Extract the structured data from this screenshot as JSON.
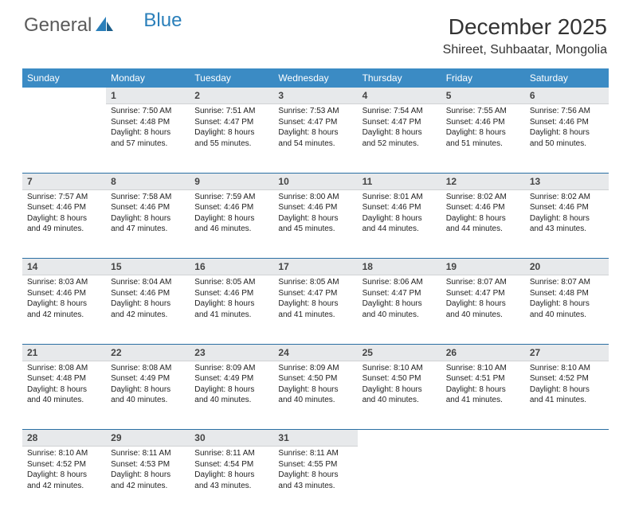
{
  "brand": {
    "part1": "General",
    "part2": "Blue"
  },
  "title": "December 2025",
  "location": "Shireet, Suhbaatar, Mongolia",
  "colors": {
    "header_bg": "#3b8bc4",
    "header_text": "#ffffff",
    "daynum_bg": "#e7e9eb",
    "week_rule": "#2a6fa3",
    "logo_gray": "#5a5a5a",
    "logo_blue": "#2a7fba"
  },
  "fonts": {
    "title_size": 28,
    "location_size": 16,
    "th_size": 12,
    "cell_size": 10
  },
  "weekdays": [
    "Sunday",
    "Monday",
    "Tuesday",
    "Wednesday",
    "Thursday",
    "Friday",
    "Saturday"
  ],
  "weeks": [
    [
      {
        "n": "",
        "sunrise": "",
        "sunset": "",
        "daylight": ""
      },
      {
        "n": "1",
        "sunrise": "Sunrise: 7:50 AM",
        "sunset": "Sunset: 4:48 PM",
        "daylight": "Daylight: 8 hours and 57 minutes."
      },
      {
        "n": "2",
        "sunrise": "Sunrise: 7:51 AM",
        "sunset": "Sunset: 4:47 PM",
        "daylight": "Daylight: 8 hours and 55 minutes."
      },
      {
        "n": "3",
        "sunrise": "Sunrise: 7:53 AM",
        "sunset": "Sunset: 4:47 PM",
        "daylight": "Daylight: 8 hours and 54 minutes."
      },
      {
        "n": "4",
        "sunrise": "Sunrise: 7:54 AM",
        "sunset": "Sunset: 4:47 PM",
        "daylight": "Daylight: 8 hours and 52 minutes."
      },
      {
        "n": "5",
        "sunrise": "Sunrise: 7:55 AM",
        "sunset": "Sunset: 4:46 PM",
        "daylight": "Daylight: 8 hours and 51 minutes."
      },
      {
        "n": "6",
        "sunrise": "Sunrise: 7:56 AM",
        "sunset": "Sunset: 4:46 PM",
        "daylight": "Daylight: 8 hours and 50 minutes."
      }
    ],
    [
      {
        "n": "7",
        "sunrise": "Sunrise: 7:57 AM",
        "sunset": "Sunset: 4:46 PM",
        "daylight": "Daylight: 8 hours and 49 minutes."
      },
      {
        "n": "8",
        "sunrise": "Sunrise: 7:58 AM",
        "sunset": "Sunset: 4:46 PM",
        "daylight": "Daylight: 8 hours and 47 minutes."
      },
      {
        "n": "9",
        "sunrise": "Sunrise: 7:59 AM",
        "sunset": "Sunset: 4:46 PM",
        "daylight": "Daylight: 8 hours and 46 minutes."
      },
      {
        "n": "10",
        "sunrise": "Sunrise: 8:00 AM",
        "sunset": "Sunset: 4:46 PM",
        "daylight": "Daylight: 8 hours and 45 minutes."
      },
      {
        "n": "11",
        "sunrise": "Sunrise: 8:01 AM",
        "sunset": "Sunset: 4:46 PM",
        "daylight": "Daylight: 8 hours and 44 minutes."
      },
      {
        "n": "12",
        "sunrise": "Sunrise: 8:02 AM",
        "sunset": "Sunset: 4:46 PM",
        "daylight": "Daylight: 8 hours and 44 minutes."
      },
      {
        "n": "13",
        "sunrise": "Sunrise: 8:02 AM",
        "sunset": "Sunset: 4:46 PM",
        "daylight": "Daylight: 8 hours and 43 minutes."
      }
    ],
    [
      {
        "n": "14",
        "sunrise": "Sunrise: 8:03 AM",
        "sunset": "Sunset: 4:46 PM",
        "daylight": "Daylight: 8 hours and 42 minutes."
      },
      {
        "n": "15",
        "sunrise": "Sunrise: 8:04 AM",
        "sunset": "Sunset: 4:46 PM",
        "daylight": "Daylight: 8 hours and 42 minutes."
      },
      {
        "n": "16",
        "sunrise": "Sunrise: 8:05 AM",
        "sunset": "Sunset: 4:46 PM",
        "daylight": "Daylight: 8 hours and 41 minutes."
      },
      {
        "n": "17",
        "sunrise": "Sunrise: 8:05 AM",
        "sunset": "Sunset: 4:47 PM",
        "daylight": "Daylight: 8 hours and 41 minutes."
      },
      {
        "n": "18",
        "sunrise": "Sunrise: 8:06 AM",
        "sunset": "Sunset: 4:47 PM",
        "daylight": "Daylight: 8 hours and 40 minutes."
      },
      {
        "n": "19",
        "sunrise": "Sunrise: 8:07 AM",
        "sunset": "Sunset: 4:47 PM",
        "daylight": "Daylight: 8 hours and 40 minutes."
      },
      {
        "n": "20",
        "sunrise": "Sunrise: 8:07 AM",
        "sunset": "Sunset: 4:48 PM",
        "daylight": "Daylight: 8 hours and 40 minutes."
      }
    ],
    [
      {
        "n": "21",
        "sunrise": "Sunrise: 8:08 AM",
        "sunset": "Sunset: 4:48 PM",
        "daylight": "Daylight: 8 hours and 40 minutes."
      },
      {
        "n": "22",
        "sunrise": "Sunrise: 8:08 AM",
        "sunset": "Sunset: 4:49 PM",
        "daylight": "Daylight: 8 hours and 40 minutes."
      },
      {
        "n": "23",
        "sunrise": "Sunrise: 8:09 AM",
        "sunset": "Sunset: 4:49 PM",
        "daylight": "Daylight: 8 hours and 40 minutes."
      },
      {
        "n": "24",
        "sunrise": "Sunrise: 8:09 AM",
        "sunset": "Sunset: 4:50 PM",
        "daylight": "Daylight: 8 hours and 40 minutes."
      },
      {
        "n": "25",
        "sunrise": "Sunrise: 8:10 AM",
        "sunset": "Sunset: 4:50 PM",
        "daylight": "Daylight: 8 hours and 40 minutes."
      },
      {
        "n": "26",
        "sunrise": "Sunrise: 8:10 AM",
        "sunset": "Sunset: 4:51 PM",
        "daylight": "Daylight: 8 hours and 41 minutes."
      },
      {
        "n": "27",
        "sunrise": "Sunrise: 8:10 AM",
        "sunset": "Sunset: 4:52 PM",
        "daylight": "Daylight: 8 hours and 41 minutes."
      }
    ],
    [
      {
        "n": "28",
        "sunrise": "Sunrise: 8:10 AM",
        "sunset": "Sunset: 4:52 PM",
        "daylight": "Daylight: 8 hours and 42 minutes."
      },
      {
        "n": "29",
        "sunrise": "Sunrise: 8:11 AM",
        "sunset": "Sunset: 4:53 PM",
        "daylight": "Daylight: 8 hours and 42 minutes."
      },
      {
        "n": "30",
        "sunrise": "Sunrise: 8:11 AM",
        "sunset": "Sunset: 4:54 PM",
        "daylight": "Daylight: 8 hours and 43 minutes."
      },
      {
        "n": "31",
        "sunrise": "Sunrise: 8:11 AM",
        "sunset": "Sunset: 4:55 PM",
        "daylight": "Daylight: 8 hours and 43 minutes."
      },
      {
        "n": "",
        "sunrise": "",
        "sunset": "",
        "daylight": ""
      },
      {
        "n": "",
        "sunrise": "",
        "sunset": "",
        "daylight": ""
      },
      {
        "n": "",
        "sunrise": "",
        "sunset": "",
        "daylight": ""
      }
    ]
  ]
}
